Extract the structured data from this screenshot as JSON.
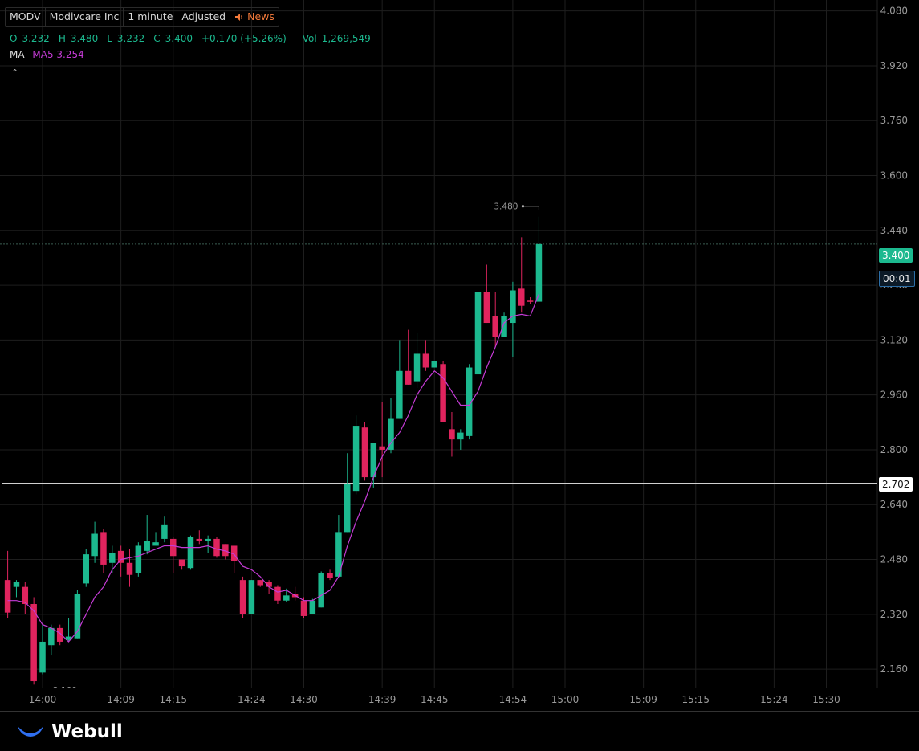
{
  "header": {
    "symbol": "MODV",
    "company": "Modivcare Inc",
    "interval": "1 minute",
    "adjustment": "Adjusted",
    "news_label": "News"
  },
  "ohlc": {
    "o_label": "O",
    "o": "3.232",
    "h_label": "H",
    "h": "3.480",
    "l_label": "L",
    "l": "3.232",
    "c_label": "C",
    "c": "3.400",
    "change": "+0.170 (+5.26%)",
    "vol_label": "Vol",
    "vol": "1,269,549"
  },
  "ma": {
    "label": "MA",
    "ma5": "MA5 3.254"
  },
  "tags": {
    "last_price": "3.400",
    "countdown": "00:01",
    "horizontal_line": "2.702",
    "high_marker": "3.480",
    "low_marker_partial": "2.109"
  },
  "colors": {
    "up": "#1cb98f",
    "down": "#e0245e",
    "ma5": "#c53bd6",
    "grid": "#1e1e1e",
    "background": "#000000",
    "news": "#f47a3a"
  },
  "brand": {
    "name": "Webull"
  },
  "chart_data": {
    "type": "candlestick",
    "ylim": [
      2.104,
      4.112
    ],
    "y_ticks": [
      "4.080",
      "3.920",
      "3.760",
      "3.600",
      "3.440",
      "3.280",
      "3.120",
      "2.960",
      "2.800",
      "2.640",
      "2.480",
      "2.320",
      "2.160"
    ],
    "x_tick_labels": [
      "14:00",
      "14:09",
      "14:15",
      "14:24",
      "14:30",
      "14:39",
      "14:45",
      "14:54",
      "15:00",
      "15:09",
      "15:15",
      "15:24",
      "15:30"
    ],
    "x_tick_minutes": [
      0,
      9,
      15,
      24,
      30,
      39,
      45,
      54,
      60,
      69,
      75,
      84,
      90
    ],
    "x_start_minute": -4,
    "candles": [
      {
        "t": -4,
        "o": 2.42,
        "h": 2.505,
        "l": 2.31,
        "c": 2.325
      },
      {
        "t": -3,
        "o": 2.4,
        "h": 2.42,
        "l": 2.37,
        "c": 2.415
      },
      {
        "t": -2,
        "o": 2.4,
        "h": 2.415,
        "l": 2.32,
        "c": 2.35
      },
      {
        "t": -1,
        "o": 2.35,
        "h": 2.37,
        "l": 2.115,
        "c": 2.125
      },
      {
        "t": 0,
        "o": 2.15,
        "h": 2.29,
        "l": 2.145,
        "c": 2.24
      },
      {
        "t": 1,
        "o": 2.23,
        "h": 2.29,
        "l": 2.2,
        "c": 2.28
      },
      {
        "t": 2,
        "o": 2.28,
        "h": 2.29,
        "l": 2.23,
        "c": 2.24
      },
      {
        "t": 3,
        "o": 2.245,
        "h": 2.31,
        "l": 2.24,
        "c": 2.255
      },
      {
        "t": 4,
        "o": 2.25,
        "h": 2.39,
        "l": 2.25,
        "c": 2.38
      },
      {
        "t": 5,
        "o": 2.41,
        "h": 2.51,
        "l": 2.4,
        "c": 2.495
      },
      {
        "t": 6,
        "o": 2.49,
        "h": 2.59,
        "l": 2.47,
        "c": 2.555
      },
      {
        "t": 7,
        "o": 2.56,
        "h": 2.57,
        "l": 2.44,
        "c": 2.465
      },
      {
        "t": 8,
        "o": 2.47,
        "h": 2.52,
        "l": 2.44,
        "c": 2.5
      },
      {
        "t": 9,
        "o": 2.505,
        "h": 2.52,
        "l": 2.43,
        "c": 2.47
      },
      {
        "t": 10,
        "o": 2.47,
        "h": 2.51,
        "l": 2.4,
        "c": 2.435
      },
      {
        "t": 11,
        "o": 2.44,
        "h": 2.53,
        "l": 2.43,
        "c": 2.52
      },
      {
        "t": 12,
        "o": 2.505,
        "h": 2.61,
        "l": 2.495,
        "c": 2.535
      },
      {
        "t": 13,
        "o": 2.52,
        "h": 2.56,
        "l": 2.52,
        "c": 2.53
      },
      {
        "t": 14,
        "o": 2.54,
        "h": 2.605,
        "l": 2.53,
        "c": 2.58
      },
      {
        "t": 15,
        "o": 2.54,
        "h": 2.545,
        "l": 2.44,
        "c": 2.49
      },
      {
        "t": 16,
        "o": 2.48,
        "h": 2.48,
        "l": 2.45,
        "c": 2.46
      },
      {
        "t": 17,
        "o": 2.455,
        "h": 2.55,
        "l": 2.45,
        "c": 2.545
      },
      {
        "t": 18,
        "o": 2.54,
        "h": 2.565,
        "l": 2.525,
        "c": 2.535
      },
      {
        "t": 19,
        "o": 2.535,
        "h": 2.55,
        "l": 2.5,
        "c": 2.54
      },
      {
        "t": 20,
        "o": 2.54,
        "h": 2.545,
        "l": 2.485,
        "c": 2.49
      },
      {
        "t": 21,
        "o": 2.525,
        "h": 2.525,
        "l": 2.48,
        "c": 2.49
      },
      {
        "t": 22,
        "o": 2.52,
        "h": 2.52,
        "l": 2.44,
        "c": 2.475
      },
      {
        "t": 23,
        "o": 2.42,
        "h": 2.43,
        "l": 2.31,
        "c": 2.32
      },
      {
        "t": 24,
        "o": 2.32,
        "h": 2.42,
        "l": 2.32,
        "c": 2.42
      },
      {
        "t": 25,
        "o": 2.42,
        "h": 2.42,
        "l": 2.4,
        "c": 2.405
      },
      {
        "t": 26,
        "o": 2.415,
        "h": 2.42,
        "l": 2.38,
        "c": 2.4
      },
      {
        "t": 27,
        "o": 2.4,
        "h": 2.405,
        "l": 2.35,
        "c": 2.36
      },
      {
        "t": 28,
        "o": 2.36,
        "h": 2.395,
        "l": 2.355,
        "c": 2.375
      },
      {
        "t": 29,
        "o": 2.38,
        "h": 2.4,
        "l": 2.36,
        "c": 2.37
      },
      {
        "t": 30,
        "o": 2.36,
        "h": 2.37,
        "l": 2.31,
        "c": 2.315
      },
      {
        "t": 31,
        "o": 2.32,
        "h": 2.365,
        "l": 2.32,
        "c": 2.36
      },
      {
        "t": 32,
        "o": 2.34,
        "h": 2.445,
        "l": 2.34,
        "c": 2.44
      },
      {
        "t": 33,
        "o": 2.44,
        "h": 2.45,
        "l": 2.42,
        "c": 2.425
      },
      {
        "t": 34,
        "o": 2.43,
        "h": 2.61,
        "l": 2.43,
        "c": 2.56
      },
      {
        "t": 35,
        "o": 2.56,
        "h": 2.79,
        "l": 2.56,
        "c": 2.7
      },
      {
        "t": 36,
        "o": 2.68,
        "h": 2.9,
        "l": 2.67,
        "c": 2.87
      },
      {
        "t": 37,
        "o": 2.865,
        "h": 2.88,
        "l": 2.71,
        "c": 2.72
      },
      {
        "t": 38,
        "o": 2.72,
        "h": 2.82,
        "l": 2.69,
        "c": 2.82
      },
      {
        "t": 39,
        "o": 2.81,
        "h": 2.94,
        "l": 2.72,
        "c": 2.8
      },
      {
        "t": 40,
        "o": 2.8,
        "h": 2.95,
        "l": 2.79,
        "c": 2.89
      },
      {
        "t": 41,
        "o": 2.89,
        "h": 3.12,
        "l": 2.89,
        "c": 3.03
      },
      {
        "t": 42,
        "o": 3.03,
        "h": 3.15,
        "l": 2.99,
        "c": 2.99
      },
      {
        "t": 43,
        "o": 3.0,
        "h": 3.14,
        "l": 2.98,
        "c": 3.08
      },
      {
        "t": 44,
        "o": 3.08,
        "h": 3.12,
        "l": 3.03,
        "c": 3.04
      },
      {
        "t": 45,
        "o": 3.04,
        "h": 3.06,
        "l": 3.04,
        "c": 3.06
      },
      {
        "t": 46,
        "o": 3.05,
        "h": 3.06,
        "l": 2.88,
        "c": 2.88
      },
      {
        "t": 47,
        "o": 2.86,
        "h": 2.91,
        "l": 2.78,
        "c": 2.83
      },
      {
        "t": 48,
        "o": 2.83,
        "h": 2.86,
        "l": 2.8,
        "c": 2.85
      },
      {
        "t": 49,
        "o": 2.84,
        "h": 3.05,
        "l": 2.83,
        "c": 3.04
      },
      {
        "t": 50,
        "o": 3.02,
        "h": 3.42,
        "l": 3.02,
        "c": 3.26
      },
      {
        "t": 51,
        "o": 3.26,
        "h": 3.34,
        "l": 3.17,
        "c": 3.17
      },
      {
        "t": 52,
        "o": 3.19,
        "h": 3.26,
        "l": 3.1,
        "c": 3.13
      },
      {
        "t": 53,
        "o": 3.13,
        "h": 3.2,
        "l": 3.13,
        "c": 3.19
      },
      {
        "t": 54,
        "o": 3.17,
        "h": 3.29,
        "l": 3.07,
        "c": 3.265
      },
      {
        "t": 55,
        "o": 3.27,
        "h": 3.42,
        "l": 3.2,
        "c": 3.22
      },
      {
        "t": 56,
        "o": 3.235,
        "h": 3.245,
        "l": 3.225,
        "c": 3.232
      },
      {
        "t": 57,
        "o": 3.232,
        "h": 3.48,
        "l": 3.232,
        "c": 3.4
      }
    ],
    "ma5": [
      {
        "t": -4,
        "v": 2.36
      },
      {
        "t": -3,
        "v": 2.36
      },
      {
        "t": -2,
        "v": 2.355
      },
      {
        "t": -1,
        "v": 2.33
      },
      {
        "t": 0,
        "v": 2.29
      },
      {
        "t": 1,
        "v": 2.28
      },
      {
        "t": 2,
        "v": 2.265
      },
      {
        "t": 3,
        "v": 2.24
      },
      {
        "t": 4,
        "v": 2.27
      },
      {
        "t": 5,
        "v": 2.32
      },
      {
        "t": 6,
        "v": 2.37
      },
      {
        "t": 7,
        "v": 2.4
      },
      {
        "t": 8,
        "v": 2.45
      },
      {
        "t": 9,
        "v": 2.48
      },
      {
        "t": 10,
        "v": 2.485
      },
      {
        "t": 11,
        "v": 2.49
      },
      {
        "t": 12,
        "v": 2.5
      },
      {
        "t": 13,
        "v": 2.51
      },
      {
        "t": 14,
        "v": 2.52
      },
      {
        "t": 15,
        "v": 2.52
      },
      {
        "t": 16,
        "v": 2.515
      },
      {
        "t": 17,
        "v": 2.515
      },
      {
        "t": 18,
        "v": 2.515
      },
      {
        "t": 19,
        "v": 2.52
      },
      {
        "t": 20,
        "v": 2.51
      },
      {
        "t": 21,
        "v": 2.505
      },
      {
        "t": 22,
        "v": 2.495
      },
      {
        "t": 23,
        "v": 2.46
      },
      {
        "t": 24,
        "v": 2.45
      },
      {
        "t": 25,
        "v": 2.43
      },
      {
        "t": 26,
        "v": 2.4
      },
      {
        "t": 27,
        "v": 2.385
      },
      {
        "t": 28,
        "v": 2.39
      },
      {
        "t": 29,
        "v": 2.375
      },
      {
        "t": 30,
        "v": 2.36
      },
      {
        "t": 31,
        "v": 2.36
      },
      {
        "t": 32,
        "v": 2.375
      },
      {
        "t": 33,
        "v": 2.39
      },
      {
        "t": 34,
        "v": 2.43
      },
      {
        "t": 35,
        "v": 2.52
      },
      {
        "t": 36,
        "v": 2.59
      },
      {
        "t": 37,
        "v": 2.65
      },
      {
        "t": 38,
        "v": 2.72
      },
      {
        "t": 39,
        "v": 2.78
      },
      {
        "t": 40,
        "v": 2.82
      },
      {
        "t": 41,
        "v": 2.85
      },
      {
        "t": 42,
        "v": 2.9
      },
      {
        "t": 43,
        "v": 2.96
      },
      {
        "t": 44,
        "v": 3.0
      },
      {
        "t": 45,
        "v": 3.03
      },
      {
        "t": 46,
        "v": 3.01
      },
      {
        "t": 47,
        "v": 2.97
      },
      {
        "t": 48,
        "v": 2.93
      },
      {
        "t": 49,
        "v": 2.93
      },
      {
        "t": 50,
        "v": 2.97
      },
      {
        "t": 51,
        "v": 3.04
      },
      {
        "t": 52,
        "v": 3.1
      },
      {
        "t": 53,
        "v": 3.17
      },
      {
        "t": 54,
        "v": 3.19
      },
      {
        "t": 55,
        "v": 3.195
      },
      {
        "t": 56,
        "v": 3.19
      },
      {
        "t": 57,
        "v": 3.254
      }
    ],
    "horizontal_line": 2.702,
    "last_price": 3.4,
    "grid": true
  }
}
